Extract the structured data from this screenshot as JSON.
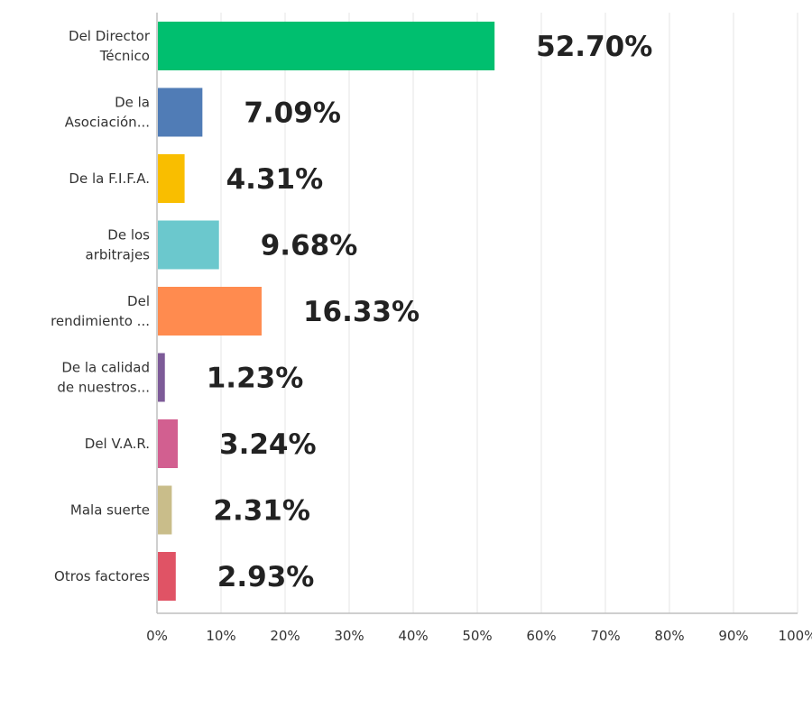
{
  "chart_data": {
    "type": "bar",
    "orientation": "horizontal",
    "categories": [
      [
        "Del Director",
        "Técnico"
      ],
      [
        "De la",
        "Asociación..."
      ],
      [
        "De la F.I.F.A."
      ],
      [
        "De los",
        "arbitrajes"
      ],
      [
        "Del",
        "rendimiento ..."
      ],
      [
        "De la calidad",
        "de nuestros..."
      ],
      [
        "Del V.A.R."
      ],
      [
        "Mala suerte"
      ],
      [
        "Otros factores"
      ]
    ],
    "values": [
      52.7,
      7.09,
      4.31,
      9.68,
      16.33,
      1.23,
      3.24,
      2.31,
      2.93
    ],
    "value_labels": [
      "52.70%",
      "7.09%",
      "4.31%",
      "9.68%",
      "16.33%",
      "1.23%",
      "3.24%",
      "2.31%",
      "2.93%"
    ],
    "colors": [
      "#00bf6f",
      "#507cb6",
      "#f9be00",
      "#6bc8cd",
      "#ff8b4f",
      "#7d5b98",
      "#d25f90",
      "#c9bd8a",
      "#e05365"
    ],
    "xlim": [
      0,
      100
    ],
    "x_ticks": [
      0,
      10,
      20,
      30,
      40,
      50,
      60,
      70,
      80,
      90,
      100
    ],
    "x_tick_labels": [
      "0%",
      "10%",
      "20%",
      "30%",
      "40%",
      "50%",
      "60%",
      "70%",
      "80%",
      "90%",
      "100%"
    ],
    "grid": true,
    "grid_color": "#e6e6e6",
    "axis_color": "#bfbfbf",
    "legend": "none"
  }
}
